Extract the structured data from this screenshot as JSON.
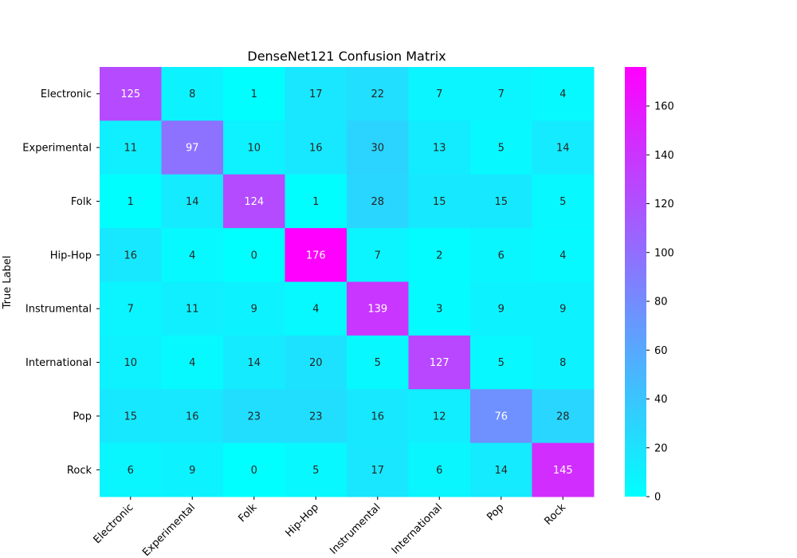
{
  "chart_data": {
    "type": "heatmap",
    "title": "DenseNet121 Confusion Matrix",
    "xlabel": "",
    "ylabel": "True Label",
    "x_labels": [
      "Electronic",
      "Experimental",
      "Folk",
      "Hip-Hop",
      "Instrumental",
      "International",
      "Pop",
      "Rock"
    ],
    "y_labels": [
      "Electronic",
      "Experimental",
      "Folk",
      "Hip-Hop",
      "Instrumental",
      "International",
      "Pop",
      "Rock"
    ],
    "matrix": [
      [
        125,
        8,
        1,
        17,
        22,
        7,
        7,
        4
      ],
      [
        11,
        97,
        10,
        16,
        30,
        13,
        5,
        14
      ],
      [
        1,
        14,
        124,
        1,
        28,
        15,
        15,
        5
      ],
      [
        16,
        4,
        0,
        176,
        7,
        2,
        6,
        4
      ],
      [
        7,
        11,
        9,
        4,
        139,
        3,
        9,
        9
      ],
      [
        10,
        4,
        14,
        20,
        5,
        127,
        5,
        8
      ],
      [
        15,
        16,
        23,
        23,
        16,
        12,
        76,
        28
      ],
      [
        6,
        9,
        0,
        5,
        17,
        6,
        14,
        145
      ]
    ],
    "colormap": "cool",
    "color_low": "#00ffff",
    "color_high": "#ff00ff",
    "colorbar": {
      "range": [
        0,
        176
      ],
      "ticks": [
        0,
        20,
        40,
        60,
        80,
        100,
        120,
        140,
        160
      ]
    }
  }
}
